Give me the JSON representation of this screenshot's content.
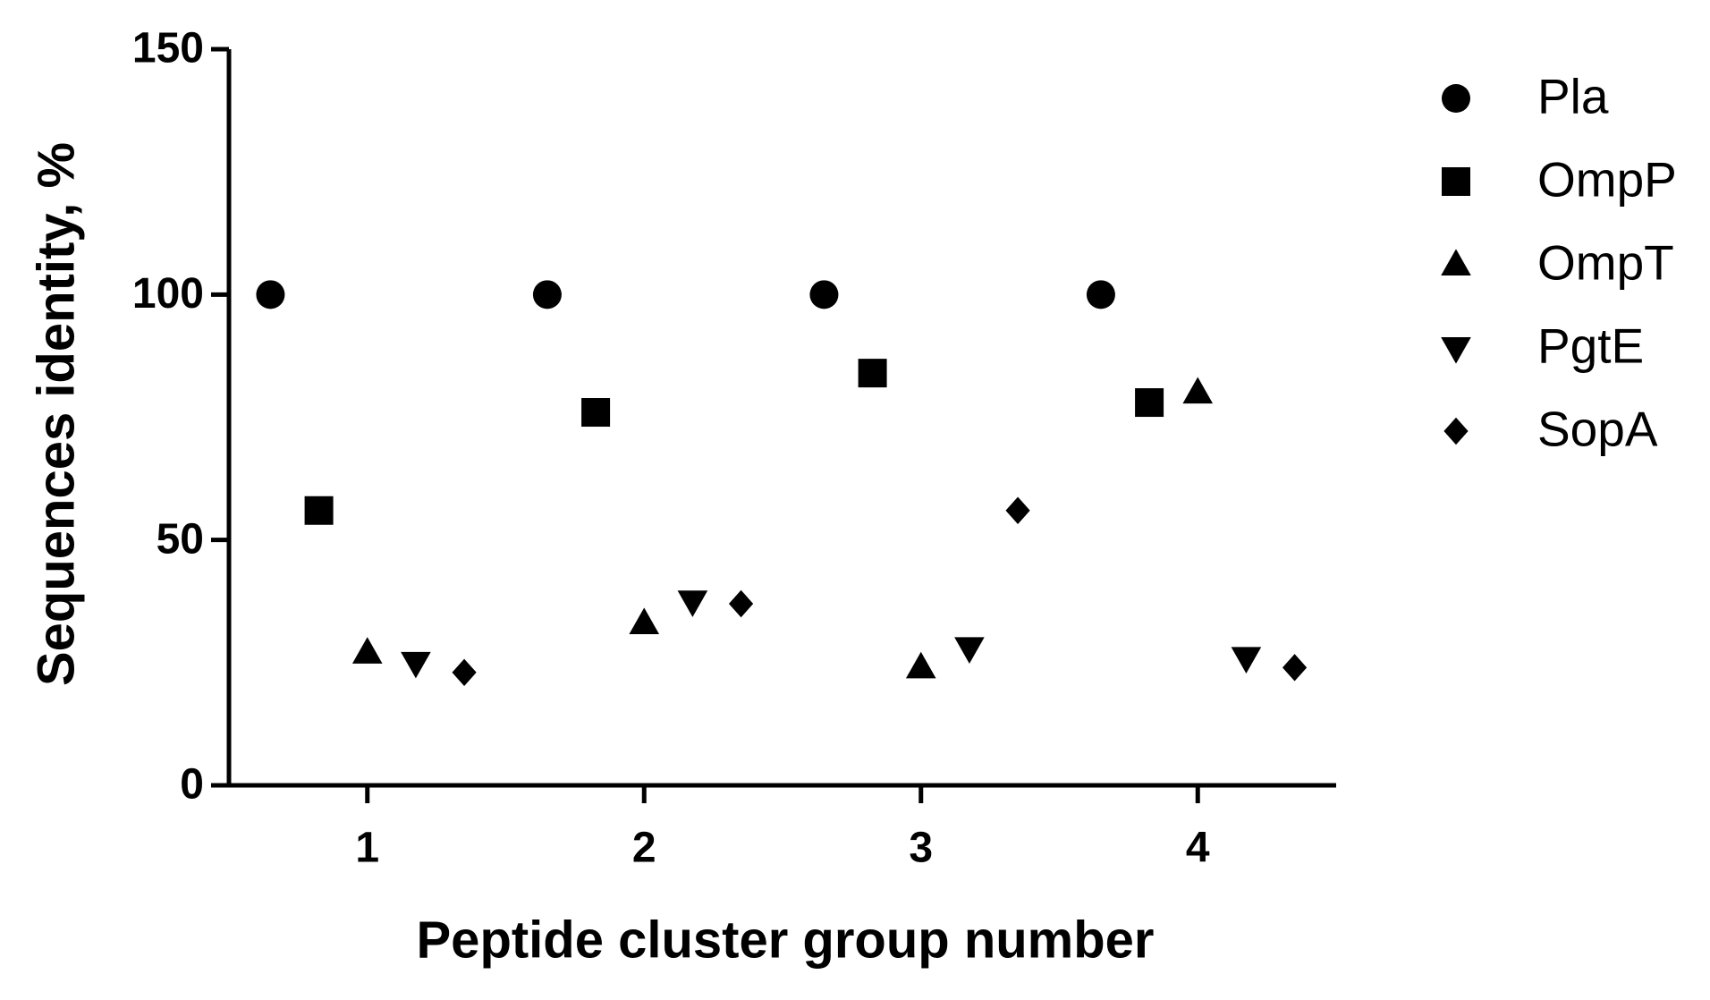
{
  "chart_data": {
    "type": "scatter",
    "x_label": "Peptide cluster group number",
    "y_label": "Sequences identity, %",
    "categories": [
      "1",
      "2",
      "3",
      "4"
    ],
    "series": [
      {
        "name": "Pla",
        "color": "#000000",
        "marker": "circle",
        "values": [
          100,
          100,
          100,
          100
        ]
      },
      {
        "name": "OmpP",
        "color": "#000000",
        "marker": "square",
        "values": [
          56,
          76,
          84,
          78
        ]
      },
      {
        "name": "OmpT",
        "color": "#000000",
        "marker": "triangle-up",
        "values": [
          27,
          33,
          24,
          80
        ]
      },
      {
        "name": "PgtE",
        "color": "#000000",
        "marker": "triangle-down",
        "values": [
          25,
          37.5,
          28,
          26
        ]
      },
      {
        "name": "SopA",
        "color": "#000000",
        "marker": "diamond",
        "values": [
          23,
          37,
          56,
          24
        ]
      }
    ],
    "ylim": [
      0,
      150
    ],
    "yticks": [
      0,
      50,
      100,
      150
    ],
    "legend": "right"
  }
}
